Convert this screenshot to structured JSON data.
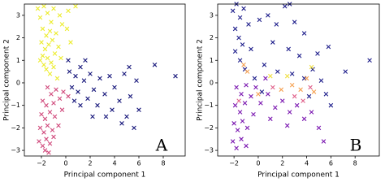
{
  "chart_data": [
    {
      "type": "scatter",
      "xlabel": "Principal component 1",
      "ylabel": "Principal component 2",
      "annotation": "A",
      "xlim": [
        -3.4,
        9.8
      ],
      "ylim": [
        -3.25,
        3.5
      ],
      "xticks": [
        {
          "value": -2,
          "label": "−2"
        },
        0,
        2,
        4,
        6,
        8
      ],
      "yticks": [
        {
          "value": -3,
          "label": "−3"
        },
        {
          "value": -2,
          "label": "−2"
        },
        {
          "value": -1,
          "label": "−1"
        },
        0,
        1,
        2,
        3
      ],
      "series": [
        {
          "color": "#ecec2c",
          "x": [
            -2.3,
            -2.1,
            -1.8,
            -1.5,
            -1.0,
            -0.5,
            0.2,
            0.8,
            -0.3,
            -1.2,
            -1.9,
            -1.6,
            -1.3,
            -0.8,
            0.1,
            -2.0,
            -1.7,
            -1.4,
            -1.1,
            -0.6,
            -1.9,
            -1.5,
            -1.2,
            -0.9,
            -1.6,
            -1.3,
            -1.0,
            -0.7,
            -1.8,
            -2.1,
            0.4,
            -0.4
          ],
          "values": [
            3.3,
            2.9,
            3.4,
            3.1,
            3.3,
            3.0,
            3.2,
            3.4,
            2.6,
            2.7,
            2.4,
            2.1,
            2.3,
            2.2,
            2.4,
            1.8,
            1.5,
            1.7,
            1.9,
            1.6,
            1.2,
            1.1,
            0.9,
            1.3,
            0.6,
            0.4,
            0.7,
            0.2,
            0.8,
            1.0,
            1.8,
            1.1
          ]
        },
        {
          "color": "#d0487b",
          "x": [
            -1.5,
            -1.2,
            -0.8,
            -1.9,
            -1.6,
            -1.0,
            -0.5,
            -2.0,
            -1.7,
            -1.3,
            -0.9,
            -0.3,
            -2.1,
            -1.8,
            -1.5,
            -1.1,
            -0.6,
            -2.2,
            -1.9,
            -1.6,
            -1.3,
            -1.0,
            -1.7,
            -1.4,
            -0.2,
            0.2
          ],
          "values": [
            -0.2,
            -0.5,
            -0.3,
            -0.8,
            -1.0,
            -0.9,
            -0.7,
            -1.4,
            -1.6,
            -1.3,
            -1.5,
            -1.2,
            -2.0,
            -2.2,
            -1.9,
            -2.1,
            -1.9,
            -2.6,
            -2.8,
            -2.5,
            -2.7,
            -2.4,
            -3.0,
            -3.1,
            -0.4,
            -0.6
          ]
        },
        {
          "color": "#15157a",
          "x": [
            0.3,
            0.8,
            1.2,
            0.5,
            1.0,
            1.5,
            2.0,
            2.3,
            1.8,
            2.8,
            3.2,
            2.6,
            3.6,
            4.0,
            3.8,
            4.4,
            4.8,
            5.0,
            5.3,
            5.6,
            4.6,
            3.3,
            5.8,
            5.2,
            6.0,
            1.2,
            0.7,
            2.2,
            7.3,
            9.0,
            1.6,
            0.2
          ],
          "values": [
            0.5,
            0.3,
            0.7,
            -0.2,
            -0.4,
            0.1,
            0.4,
            -0.3,
            -0.7,
            0.2,
            -0.5,
            -1.0,
            0.3,
            -0.2,
            -1.2,
            -0.8,
            0.4,
            -1.5,
            -0.6,
            -2.0,
            -1.8,
            -1.5,
            0.1,
            0.7,
            -1.2,
            -1.0,
            -0.8,
            -1.5,
            0.8,
            0.3,
            1.0,
            1.0
          ]
        }
      ]
    },
    {
      "type": "scatter",
      "xlabel": "Principal component 1",
      "ylabel": "Principal component 2",
      "annotation": "B",
      "xlim": [
        -3.35,
        10.0
      ],
      "ylim": [
        -3.25,
        3.5
      ],
      "xticks": [
        {
          "value": -2,
          "label": "−2"
        },
        0,
        2,
        4,
        6,
        8
      ],
      "yticks": [
        {
          "value": -3,
          "label": "−3"
        },
        {
          "value": -2,
          "label": "−2"
        },
        {
          "value": -1,
          "label": "−1"
        },
        0,
        1,
        2,
        3
      ],
      "series": [
        {
          "color": "#1c1c8a",
          "x": [
            -2.1,
            -1.8,
            -1.5,
            -1.2,
            -0.8,
            -1.9,
            -1.6,
            -1.3,
            -1.9,
            -1.5,
            -1.1,
            -0.6,
            0.1,
            0.8,
            1.5,
            2.2,
            2.6,
            3.0,
            3.8,
            1.2,
            2.5,
            3.4,
            0.5,
            1.6,
            2.8,
            3.8,
            4.5,
            5.2,
            5.6,
            6.0,
            4.2,
            4.9,
            5.8,
            7.2,
            9.2,
            0.3,
            -0.3
          ],
          "values": [
            3.2,
            3.5,
            2.9,
            3.3,
            2.6,
            2.4,
            2.0,
            1.7,
            1.4,
            1.0,
            0.6,
            1.5,
            2.8,
            3.0,
            2.6,
            3.4,
            3.5,
            2.7,
            2.2,
            1.8,
            1.5,
            1.2,
            0.8,
            0.5,
            0.4,
            0.2,
            0.6,
            0.1,
            -0.5,
            -1.0,
            -0.6,
            1.3,
            1.6,
            0.5,
            1.0,
            -0.4,
            0.2
          ]
        },
        {
          "color": "#7a16b0",
          "x": [
            -1.8,
            -1.4,
            -1.0,
            -1.9,
            -1.5,
            -1.1,
            -0.6,
            -2.0,
            -1.7,
            -1.3,
            -0.9,
            -0.4,
            -2.1,
            -1.8,
            -1.4,
            -1.0,
            0.2,
            0.8,
            1.4,
            2.0,
            2.6,
            3.2,
            3.8,
            4.4,
            5.0,
            5.4,
            1.0,
            2.4,
            -0.2,
            0.6
          ],
          "values": [
            -0.2,
            -0.5,
            -0.1,
            -1.0,
            -1.3,
            -0.9,
            -0.6,
            -1.8,
            -2.1,
            -1.7,
            -2.0,
            -1.4,
            -2.6,
            -2.9,
            -2.5,
            -2.8,
            -0.9,
            -0.5,
            -1.1,
            -0.8,
            -1.3,
            -1.0,
            -1.6,
            -1.3,
            -2.0,
            -2.6,
            -1.6,
            -1.9,
            -0.2,
            0.2
          ]
        },
        {
          "color": "#f5a050",
          "x": [
            -1.2,
            -0.9,
            0.0,
            2.8,
            3.5,
            4.0,
            4.6,
            1.9
          ],
          "values": [
            0.8,
            0.5,
            -0.5,
            -0.1,
            -0.3,
            0.2,
            -0.4,
            -0.3
          ]
        },
        {
          "color": "#e0608a",
          "x": [
            -1.6,
            3.0,
            3.7,
            4.3,
            1.2
          ],
          "values": [
            -0.8,
            -0.6,
            -0.8,
            -0.2,
            -0.2
          ]
        },
        {
          "color": "#f0e040",
          "x": [
            1.0,
            2.4,
            4.4
          ],
          "values": [
            0.3,
            0.3,
            0.7
          ]
        }
      ]
    }
  ]
}
